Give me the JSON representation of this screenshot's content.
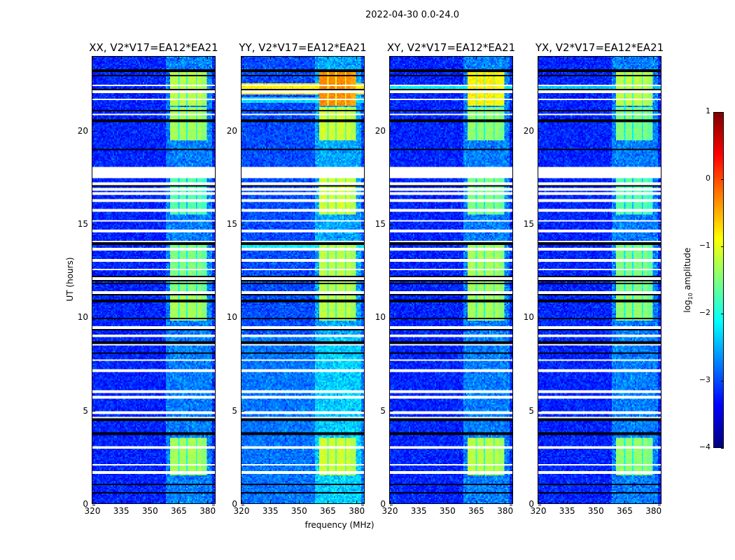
{
  "chart_data": {
    "type": "heatmap",
    "title": "2022-04-30 0.0-24.0",
    "xlabel": "frequency (MHz)",
    "ylabel": "UT (hours)",
    "xlim": [
      320,
      384.5
    ],
    "ylim": [
      0,
      24
    ],
    "xticks": [
      "320",
      "335",
      "350",
      "365",
      "380"
    ],
    "xtick_values": [
      320,
      335,
      350,
      365,
      380
    ],
    "yticks": [
      "0",
      "5",
      "10",
      "15",
      "20"
    ],
    "ytick_values": [
      0,
      5,
      10,
      15,
      20
    ],
    "colorbar": {
      "label_main": "log",
      "label_sub": "10",
      "label_rest": " amplitude",
      "range": [
        -4,
        1
      ],
      "ticks": [
        "1",
        "0",
        "−1",
        "−2",
        "−3",
        "−4"
      ],
      "tick_values": [
        1,
        0,
        -1,
        -2,
        -3,
        -4
      ],
      "colormap": "jet"
    },
    "active_band_mhz": [
      360.5,
      380
    ],
    "channel_gaps_mhz": [
      365.5,
      370,
      375
    ],
    "flagged_white_hours": [
      22.46,
      22.12,
      21.71,
      20.89,
      17.55,
      17.7,
      17.85,
      18.0,
      17.17,
      16.87,
      16.65,
      16.27,
      15.75,
      15.19,
      14.62,
      14.06,
      13.65,
      13.6,
      13.05,
      12.56,
      12.07,
      11.32,
      9.45,
      9.0,
      8.51,
      7.69,
      7.12,
      6.0,
      5.74,
      5.7,
      4.87,
      4.61,
      3.0,
      2.06,
      1.69,
      1.65
    ],
    "flagged_black_hours": [
      23.25,
      22.99,
      22.24,
      21.1,
      20.55,
      19.01,
      17.06,
      13.95,
      12.19,
      12.0,
      11.81,
      11.25,
      10.87,
      9.94,
      9.37,
      8.62,
      8.06,
      4.5,
      3.75,
      1.01,
      0.56
    ],
    "panels": [
      {
        "title": "XX, V2*V17=EA12*EA21",
        "base": -3.2,
        "segments": [
          [
            1.5,
            3.5,
            -1.3
          ],
          [
            9.8,
            11.2,
            -1.3
          ],
          [
            11.4,
            14.0,
            -1.5
          ],
          [
            15.5,
            17.5,
            -1.7
          ],
          [
            19.5,
            21.3,
            -1.3
          ],
          [
            21.4,
            23.3,
            -1.2
          ]
        ],
        "stripes": []
      },
      {
        "title": "YY, V2*V17=EA12*EA21",
        "base": -3.0,
        "segments": [
          [
            1.5,
            3.5,
            -1.1
          ],
          [
            9.8,
            11.2,
            -1.2
          ],
          [
            11.4,
            14.0,
            -1.2
          ],
          [
            15.5,
            17.5,
            -1.1
          ],
          [
            19.5,
            21.3,
            -1.1
          ],
          [
            21.4,
            23.3,
            -0.3
          ]
        ],
        "stripes": [
          [
            22.0,
            22.6,
            -0.8
          ],
          [
            13.6,
            13.9,
            -2.2
          ],
          [
            21.5,
            21.8,
            -2.3
          ]
        ]
      },
      {
        "title": "XY, V2*V17=EA12*EA21",
        "base": -3.2,
        "segments": [
          [
            1.5,
            3.5,
            -1.2
          ],
          [
            9.8,
            11.2,
            -1.3
          ],
          [
            11.4,
            14.0,
            -1.3
          ],
          [
            15.5,
            17.5,
            -1.5
          ],
          [
            19.5,
            21.3,
            -1.4
          ],
          [
            21.4,
            23.3,
            -0.8
          ]
        ],
        "stripes": [
          [
            22.2,
            22.4,
            -2.2
          ]
        ]
      },
      {
        "title": "YX, V2*V17=EA12*EA21",
        "base": -3.2,
        "segments": [
          [
            1.5,
            3.5,
            -1.4
          ],
          [
            9.8,
            11.2,
            -1.4
          ],
          [
            11.4,
            14.0,
            -1.5
          ],
          [
            15.5,
            17.5,
            -1.7
          ],
          [
            19.5,
            21.3,
            -1.5
          ],
          [
            21.4,
            23.3,
            -1.2
          ]
        ],
        "stripes": [
          [
            22.2,
            22.4,
            -2.4
          ]
        ]
      }
    ]
  }
}
